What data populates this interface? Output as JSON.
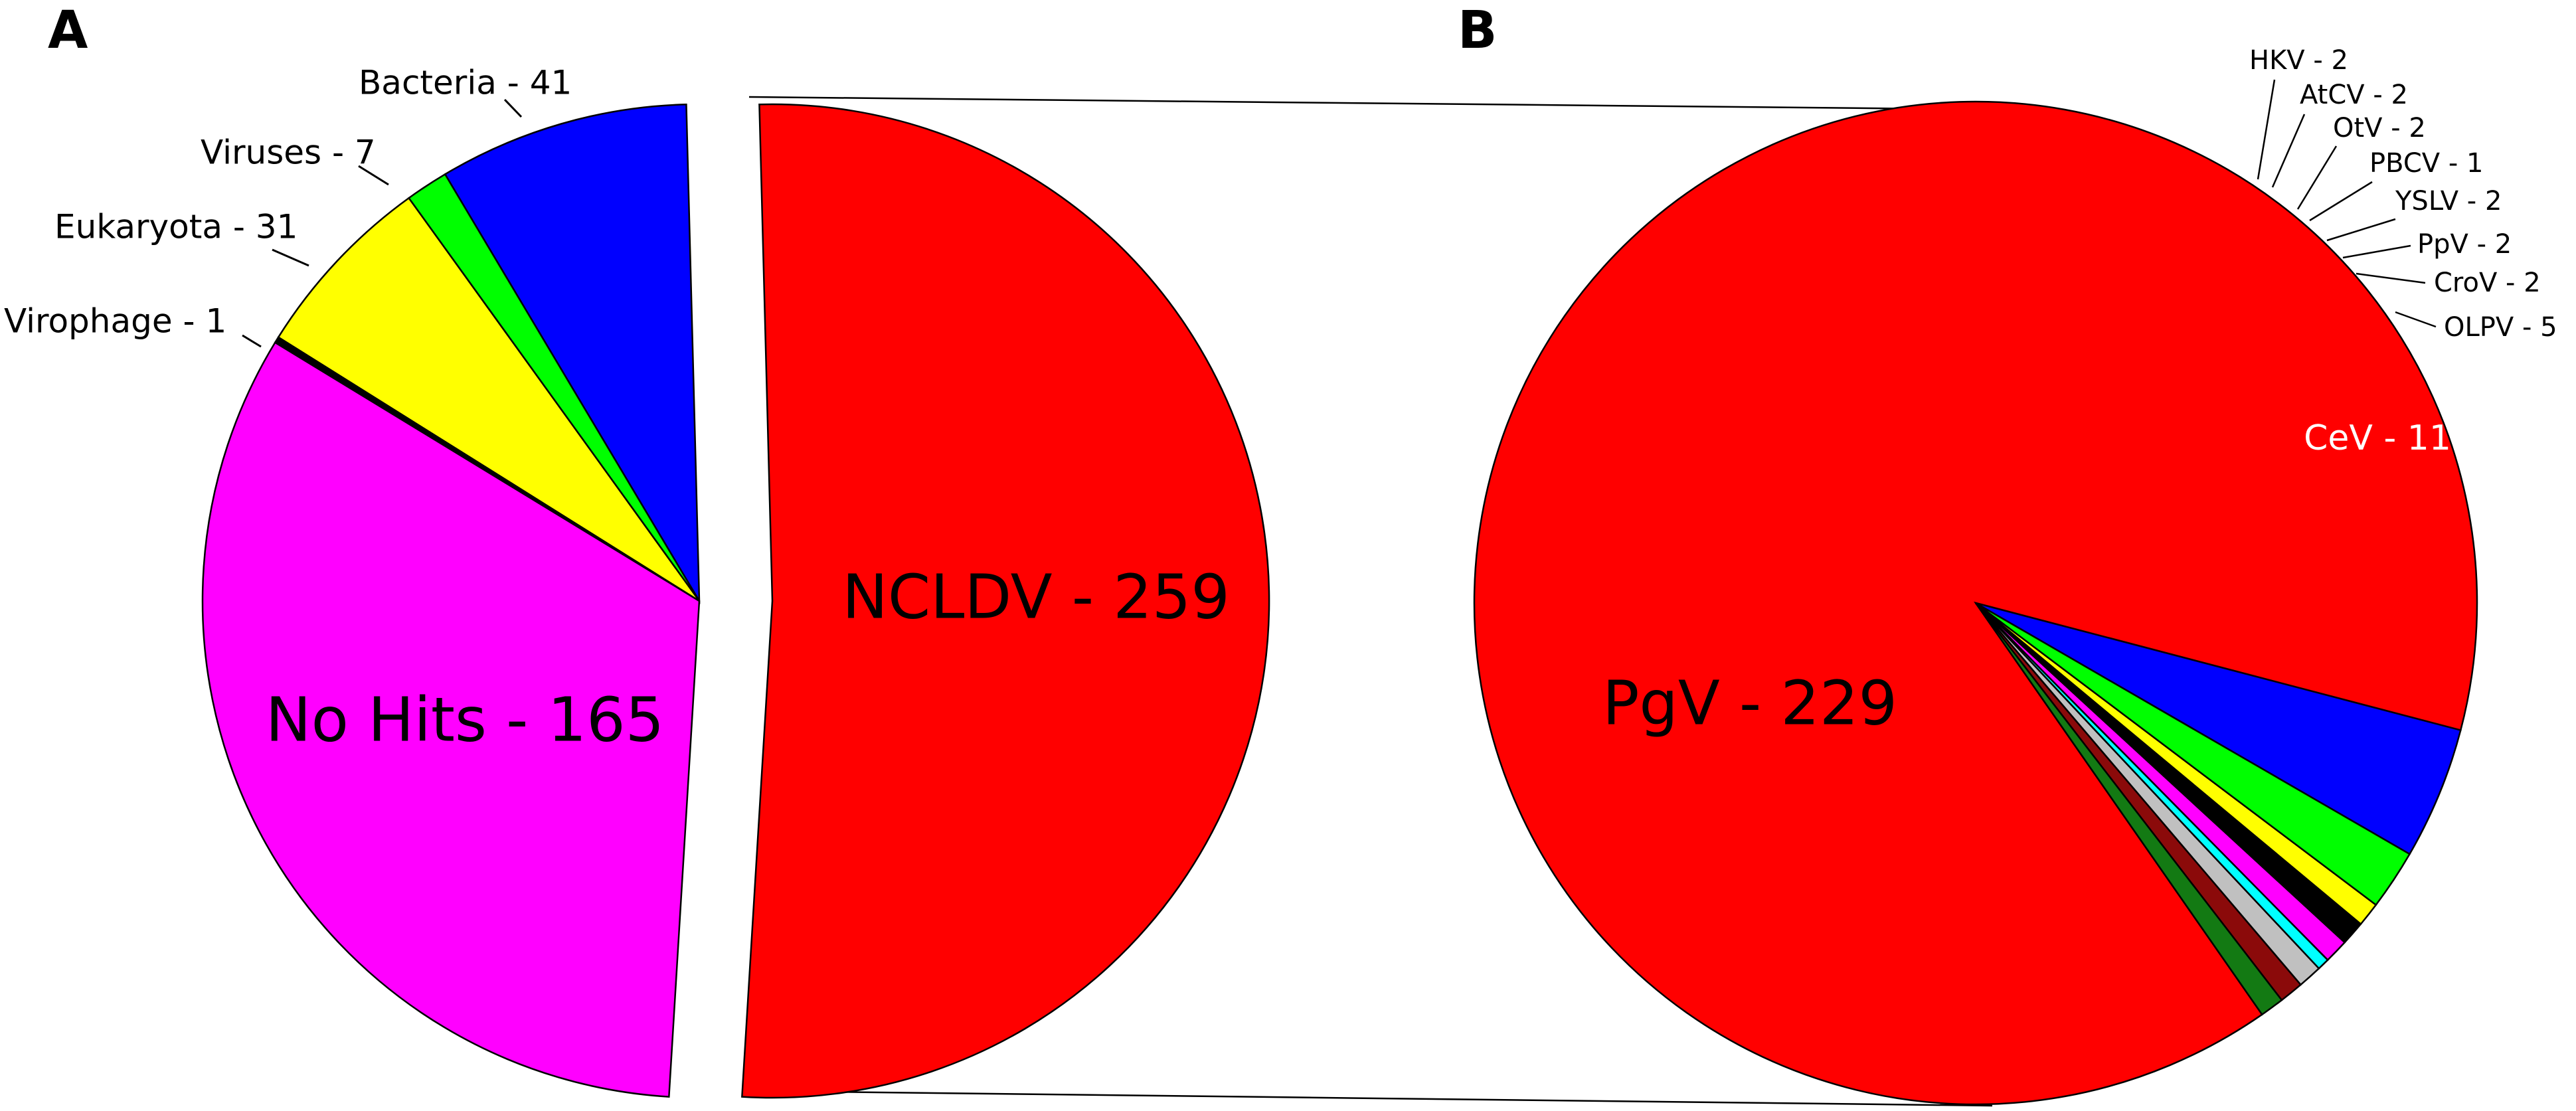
{
  "chart_data": [
    {
      "type": "pie",
      "panel": "A",
      "slices": [
        {
          "label": "NCLDV - 259",
          "value": 259,
          "color": "#ff0000"
        },
        {
          "label": "Bacteria - 41",
          "value": 41,
          "color": "#0000ff"
        },
        {
          "label": "Viruses - 7",
          "value": 7,
          "color": "#00ff00"
        },
        {
          "label": "Eukaryota - 31",
          "value": 31,
          "color": "#ffff00"
        },
        {
          "label": "Virophage - 1",
          "value": 1,
          "color": "#000000"
        },
        {
          "label": "No Hits - 165",
          "value": 165,
          "color": "#ff00ff"
        }
      ],
      "exploded": "NCLDV - 259"
    },
    {
      "type": "pie",
      "panel": "B",
      "slices": [
        {
          "label": "PgV - 229",
          "value": 229,
          "color": "#ff0000"
        },
        {
          "label": "HKV - 2",
          "value": 2,
          "color": "#137a13"
        },
        {
          "label": "AtCV - 2",
          "value": 2,
          "color": "#8b0a0a"
        },
        {
          "label": "OtV - 2",
          "value": 2,
          "color": "#c0c0c0"
        },
        {
          "label": "PBCV - 1",
          "value": 1,
          "color": "#00ffff"
        },
        {
          "label": "YSLV - 2",
          "value": 2,
          "color": "#ff00ff"
        },
        {
          "label": "PpV - 2",
          "value": 2,
          "color": "#000000"
        },
        {
          "label": "CroV - 2",
          "value": 2,
          "color": "#ffff00"
        },
        {
          "label": "OLPV - 5",
          "value": 5,
          "color": "#00ff00"
        },
        {
          "label": "CeV - 11",
          "value": 11,
          "color": "#0000ff"
        }
      ]
    }
  ]
}
